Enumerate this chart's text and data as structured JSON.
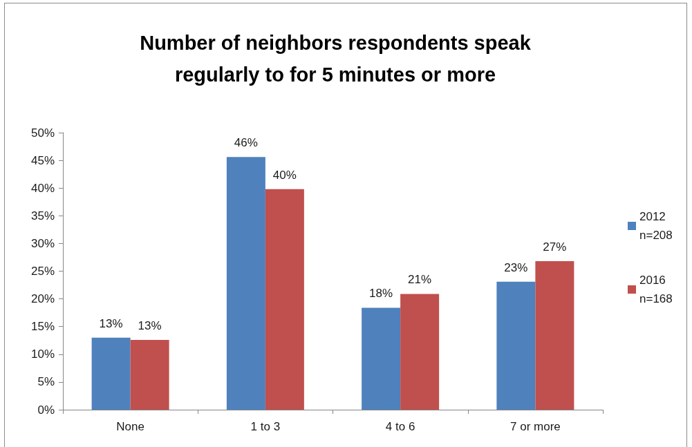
{
  "chart_data": {
    "type": "bar",
    "title": "Number of neighbors respondents speak\nregularly to for 5 minutes or more",
    "categories": [
      "None",
      "1 to 3",
      "4 to 6",
      "7 or more"
    ],
    "series": [
      {
        "name": "2012\nn=208",
        "color": "#4f81bd",
        "values": [
          13.0,
          45.6,
          18.4,
          23.1
        ],
        "value_labels": [
          "13%",
          "46%",
          "18%",
          "23%"
        ]
      },
      {
        "name": "2016\nn=168",
        "color": "#c0504d",
        "values": [
          12.6,
          39.8,
          20.9,
          26.8
        ],
        "value_labels": [
          "13%",
          "40%",
          "21%",
          "27%"
        ]
      }
    ],
    "ylim": [
      0,
      50
    ],
    "yticks": [
      {
        "value": 0,
        "label": "0%"
      },
      {
        "value": 5,
        "label": "5%"
      },
      {
        "value": 10,
        "label": "10%"
      },
      {
        "value": 15,
        "label": "15%"
      },
      {
        "value": 20,
        "label": "20%"
      },
      {
        "value": 25,
        "label": "25%"
      },
      {
        "value": 30,
        "label": "30%"
      },
      {
        "value": 35,
        "label": "35%"
      },
      {
        "value": 40,
        "label": "40%"
      },
      {
        "value": 45,
        "label": "45%"
      },
      {
        "value": 50,
        "label": "50%"
      }
    ],
    "grid": false,
    "legend": "right"
  }
}
